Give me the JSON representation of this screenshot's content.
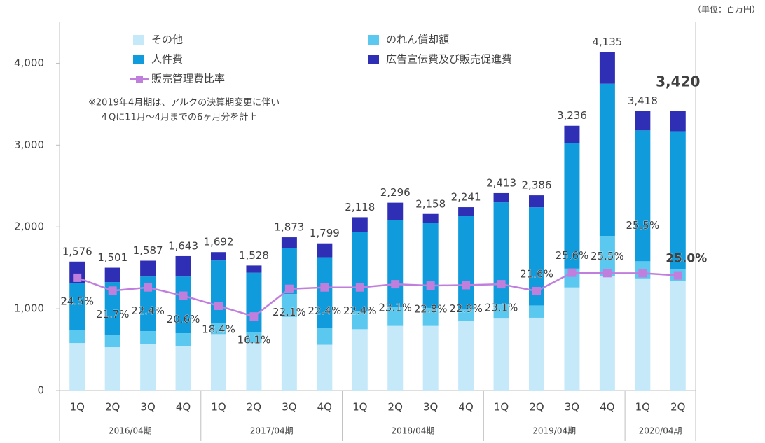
{
  "chart_data": {
    "type": "bar",
    "unit_note": "（単位：百万円）",
    "annotation": [
      "※2019年4月期は、アルクの決算期変更に伴い",
      "４Qに11月～4月までの6ヶ月分を計上"
    ],
    "groups": [
      {
        "name": "2016/04期",
        "categories": [
          "1Q",
          "2Q",
          "3Q",
          "4Q"
        ]
      },
      {
        "name": "2017/04期",
        "categories": [
          "1Q",
          "2Q",
          "3Q",
          "4Q"
        ]
      },
      {
        "name": "2018/04期",
        "categories": [
          "1Q",
          "2Q",
          "3Q",
          "4Q"
        ]
      },
      {
        "name": "2019/04期",
        "categories": [
          "1Q",
          "2Q",
          "3Q",
          "4Q"
        ]
      },
      {
        "name": "2020/04期",
        "categories": [
          "1Q",
          "2Q"
        ]
      }
    ],
    "series": [
      {
        "name": "その他",
        "color": "#c5e9f9",
        "values": [
          581,
          530,
          573,
          547,
          690,
          580,
          900,
          560,
          750,
          790,
          790,
          850,
          880,
          890,
          1260,
          1400,
          1370,
          1340
        ]
      },
      {
        "name": "のれん償却額",
        "color": "#5bc8f0",
        "values": [
          163,
          154,
          153,
          154,
          140,
          130,
          280,
          200,
          220,
          230,
          220,
          140,
          180,
          150,
          230,
          490,
          210,
          140
        ]
      },
      {
        "name": "人件費",
        "color": "#0f9bdc",
        "values": [
          572,
          641,
          667,
          692,
          760,
          730,
          560,
          870,
          970,
          1060,
          1040,
          1140,
          1240,
          1200,
          1530,
          1860,
          1600,
          1690
        ]
      },
      {
        "name": "広告宣伝費及び販売促進費",
        "color": "#2e2fb5",
        "values": [
          260,
          176,
          194,
          250,
          102,
          88,
          133,
          169,
          178,
          216,
          108,
          111,
          113,
          146,
          216,
          385,
          238,
          250
        ]
      },
      {
        "name": "販売管理費比率",
        "type": "line",
        "axis": "y2",
        "color": "#c17fdd",
        "values": [
          24.5,
          21.7,
          22.4,
          20.6,
          18.4,
          16.1,
          22.1,
          22.4,
          22.4,
          23.1,
          22.8,
          22.9,
          23.1,
          21.6,
          25.6,
          25.5,
          25.5,
          25.0
        ],
        "value_labels": [
          "24.5%",
          "21.7%",
          "22.4%",
          "20.6%",
          "18.4%",
          "16.1%",
          "22.1%",
          "22.4%",
          "22.4%",
          "23.1%",
          "22.8%",
          "22.9%",
          "23.1%",
          "21.6%",
          "25.6%",
          "25.5%",
          "25.5%",
          "25.0%"
        ]
      }
    ],
    "totals": {
      "values": [
        1576,
        1501,
        1587,
        1643,
        1692,
        1528,
        1873,
        1799,
        2118,
        2296,
        2158,
        2241,
        2413,
        2386,
        3236,
        4135,
        3418,
        3420
      ],
      "value_labels": [
        "1,576",
        "1,501",
        "1,587",
        "1,643",
        "1,692",
        "1,528",
        "1,873",
        "1,799",
        "2,118",
        "2,296",
        "2,158",
        "2,241",
        "2,413",
        "2,386",
        "3,236",
        "4,135",
        "3,418",
        "3,420"
      ]
    },
    "ylim": [
      0,
      4500
    ],
    "yticks": [
      0,
      {
        "value": 1000,
        "label": "1,000"
      },
      {
        "value": 2000,
        "label": "2,000"
      },
      {
        "value": 3000,
        "label": "3,000"
      },
      {
        "value": 4000,
        "label": "4,000"
      }
    ],
    "y2lim": [
      0,
      80
    ]
  }
}
